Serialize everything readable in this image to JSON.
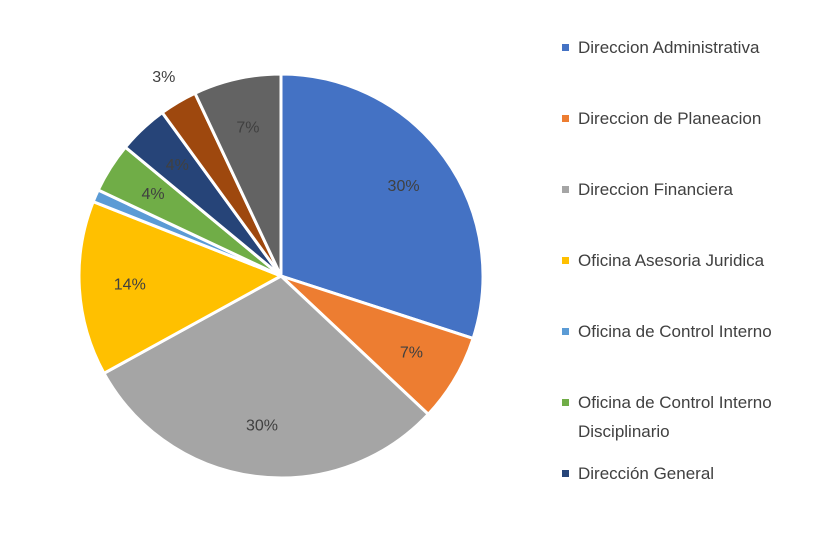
{
  "chart_data": {
    "type": "pie",
    "categories": [
      "Direccion Administrativa",
      "Direccion de Planeacion",
      "Direccion Financiera",
      "Oficina Asesoria Juridica",
      "Oficina de Control Interno",
      "Oficina de Control Interno Disciplinario",
      "Dirección General",
      null,
      null
    ],
    "values": [
      30,
      7,
      30,
      14,
      1,
      4,
      4,
      3,
      7
    ],
    "value_labels": [
      "30%",
      "7%",
      "30%",
      "14%",
      null,
      "4%",
      "4%",
      "3%",
      "7%"
    ],
    "colors": [
      "#4472c4",
      "#ed7d31",
      "#a5a5a5",
      "#ffc000",
      "#5b9bd5",
      "#70ad47",
      "#264478",
      "#9e480e",
      "#636363"
    ],
    "legend": "right"
  }
}
